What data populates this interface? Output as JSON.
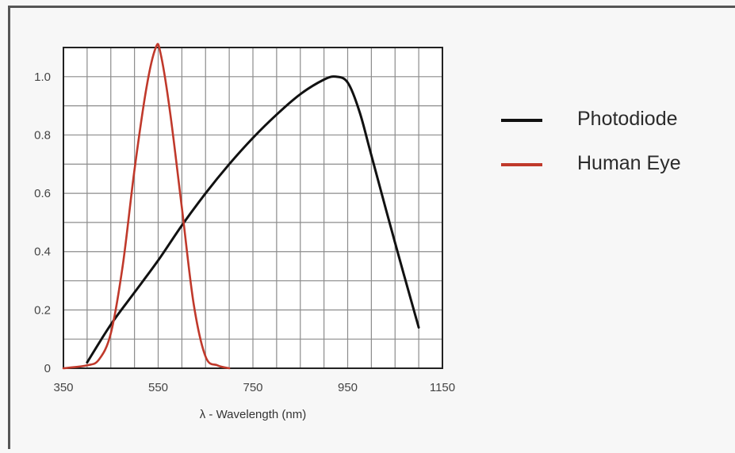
{
  "chart_data": {
    "type": "line",
    "xlabel": "λ - Wavelength (nm)",
    "ylabel": "",
    "xlim": [
      350,
      1150
    ],
    "ylim": [
      0,
      1.1
    ],
    "x_ticks": [
      "350",
      "550",
      "750",
      "950",
      "1150"
    ],
    "y_ticks": [
      "0",
      "0.2",
      "0.4",
      "0.6",
      "0.8",
      "1.0"
    ],
    "grid": true,
    "legend_position": "right",
    "series": [
      {
        "name": "Photodiode",
        "color": "#111111",
        "x": [
          400,
          450,
          500,
          550,
          600,
          650,
          700,
          750,
          800,
          850,
          900,
          925,
          950,
          975,
          1000,
          1050,
          1100
        ],
        "y": [
          0.02,
          0.15,
          0.26,
          0.37,
          0.49,
          0.6,
          0.7,
          0.79,
          0.87,
          0.94,
          0.99,
          1.0,
          0.98,
          0.88,
          0.73,
          0.43,
          0.14
        ]
      },
      {
        "name": "Human Eye",
        "color": "#c0392b",
        "x": [
          350,
          400,
          425,
          450,
          475,
          500,
          525,
          545,
          555,
          575,
          600,
          625,
          650,
          675,
          700
        ],
        "y": [
          0.0,
          0.01,
          0.03,
          0.12,
          0.35,
          0.68,
          0.96,
          1.1,
          1.08,
          0.88,
          0.55,
          0.22,
          0.04,
          0.01,
          0.0
        ]
      }
    ]
  }
}
